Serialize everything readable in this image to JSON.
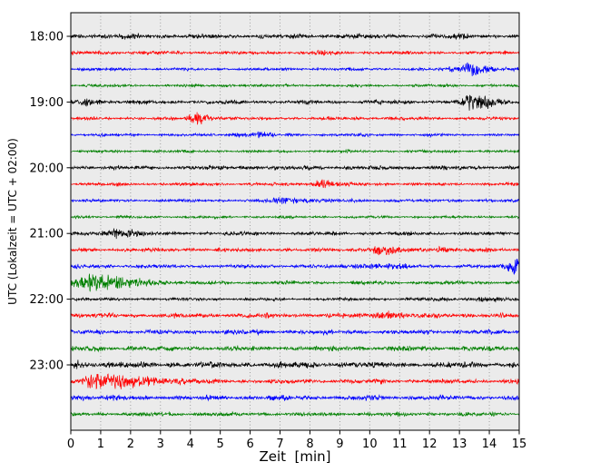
{
  "figure": {
    "bg": "#ffffff",
    "plot_bg": "#ebebeb",
    "grid_color": "#8a8a8a"
  },
  "chart_data": {
    "type": "line",
    "subtype": "seismogram-helicorder",
    "title": "",
    "xlabel": "Zeit  [min]",
    "ylabel": "UTC (Lokalzeit = UTC + 02:00)",
    "xlim": [
      0,
      15
    ],
    "grid": "vertical-dotted",
    "x_ticks": [
      "0",
      "1",
      "2",
      "3",
      "4",
      "5",
      "6",
      "7",
      "8",
      "9",
      "10",
      "11",
      "12",
      "13",
      "14",
      "15"
    ],
    "hour_labels": [
      "18:00",
      "19:00",
      "20:00",
      "21:00",
      "22:00",
      "23:00"
    ],
    "hour_rows": [
      0,
      4,
      8,
      12,
      16,
      20
    ],
    "traces_per_hour": 4,
    "minutes_per_trace": 15,
    "color_cycle": [
      "#000000",
      "#ff0000",
      "#0000ff",
      "#008000"
    ],
    "traces": [
      {
        "start": "18:00",
        "color": "#000000",
        "base": 2.7,
        "bursts": [
          {
            "t": 0.4,
            "w": 0.3,
            "a": 1.2
          },
          {
            "t": 2.5,
            "w": 0.6,
            "a": 1.0
          },
          {
            "t": 9.2,
            "w": 0.5,
            "a": 0.8
          },
          {
            "t": 13.1,
            "w": 0.4,
            "a": 0.9
          }
        ]
      },
      {
        "start": "18:15",
        "color": "#ff0000",
        "base": 2.1,
        "bursts": [
          {
            "t": 1.1,
            "w": 0.3,
            "a": 0.8
          },
          {
            "t": 8.4,
            "w": 0.25,
            "a": 1.5
          }
        ]
      },
      {
        "start": "18:30",
        "color": "#0000ff",
        "base": 1.8,
        "bursts": [
          {
            "t": 12.7,
            "w": 0.2,
            "a": 1.5
          },
          {
            "t": 13.25,
            "wl": 0.25,
            "wr": 0.8,
            "a": 7.0
          }
        ]
      },
      {
        "start": "18:45",
        "color": "#008000",
        "base": 1.7,
        "bursts": [
          {
            "t": 5.2,
            "w": 0.6,
            "a": 0.5
          }
        ]
      },
      {
        "start": "19:00",
        "color": "#000000",
        "base": 2.5,
        "bursts": [
          {
            "t": 0.6,
            "w": 0.3,
            "a": 2.8
          },
          {
            "t": 13.4,
            "wl": 0.3,
            "wr": 0.9,
            "a": 7.5
          }
        ]
      },
      {
        "start": "19:15",
        "color": "#ff0000",
        "base": 2.0,
        "bursts": [
          {
            "t": 4.2,
            "wl": 0.25,
            "wr": 0.5,
            "a": 6.0
          }
        ]
      },
      {
        "start": "19:30",
        "color": "#0000ff",
        "base": 1.8,
        "bursts": [
          {
            "t": 5.6,
            "w": 0.3,
            "a": 1.4
          },
          {
            "t": 6.3,
            "w": 0.45,
            "a": 2.2
          }
        ]
      },
      {
        "start": "19:45",
        "color": "#008000",
        "base": 1.6,
        "bursts": [
          {
            "t": 3.0,
            "w": 0.5,
            "a": 0.6
          }
        ]
      },
      {
        "start": "20:00",
        "color": "#000000",
        "base": 2.5,
        "bursts": [
          {
            "t": 7.5,
            "w": 2.5,
            "a": 0.4
          }
        ]
      },
      {
        "start": "20:15",
        "color": "#ff0000",
        "base": 2.0,
        "bursts": [
          {
            "t": 8.4,
            "wl": 0.3,
            "wr": 0.55,
            "a": 4.2
          }
        ]
      },
      {
        "start": "20:30",
        "color": "#0000ff",
        "base": 1.9,
        "bursts": [
          {
            "t": 7.0,
            "wl": 0.4,
            "wr": 1.3,
            "a": 2.6
          },
          {
            "t": 10.8,
            "w": 0.3,
            "a": 1.0
          }
        ]
      },
      {
        "start": "20:45",
        "color": "#008000",
        "base": 1.6,
        "bursts": [
          {
            "t": 0.3,
            "w": 0.3,
            "a": 0.9
          }
        ]
      },
      {
        "start": "21:00",
        "color": "#000000",
        "base": 2.4,
        "bursts": [
          {
            "t": 1.5,
            "wl": 0.35,
            "wr": 0.65,
            "a": 5.0
          }
        ]
      },
      {
        "start": "21:15",
        "color": "#ff0000",
        "base": 2.4,
        "bursts": [
          {
            "t": 10.3,
            "wl": 0.3,
            "wr": 0.6,
            "a": 5.0
          },
          {
            "t": 12.4,
            "w": 0.4,
            "a": 2.8
          }
        ]
      },
      {
        "start": "21:30",
        "color": "#0000ff",
        "base": 2.4,
        "bursts": [
          {
            "t": 10.2,
            "w": 0.9,
            "a": 1.8
          },
          {
            "t": 14.9,
            "wl": 0.35,
            "wr": 0.6,
            "a": 8.0
          }
        ]
      },
      {
        "start": "21:45",
        "color": "#008000",
        "base": 2.2,
        "bursts": [
          {
            "t": 0.45,
            "wl": 0.35,
            "wr": 1.9,
            "a": 9.0
          }
        ]
      },
      {
        "start": "22:00",
        "color": "#000000",
        "base": 2.0,
        "bursts": [
          {
            "t": 12.1,
            "w": 0.3,
            "a": 1.0
          },
          {
            "t": 13.9,
            "w": 0.55,
            "a": 2.4
          }
        ]
      },
      {
        "start": "22:15",
        "color": "#ff0000",
        "base": 2.8,
        "bursts": [
          {
            "t": 10.5,
            "wl": 0.35,
            "wr": 0.55,
            "a": 4.2
          }
        ]
      },
      {
        "start": "22:30",
        "color": "#0000ff",
        "base": 2.9,
        "bursts": []
      },
      {
        "start": "22:45",
        "color": "#008000",
        "base": 3.2,
        "bursts": []
      },
      {
        "start": "23:00",
        "color": "#000000",
        "base": 3.7,
        "bursts": [
          {
            "t": 0.25,
            "w": 0.35,
            "a": 2.0
          }
        ]
      },
      {
        "start": "23:15",
        "color": "#ff0000",
        "base": 2.8,
        "bursts": [
          {
            "t": 0.85,
            "wl": 0.45,
            "wr": 2.0,
            "a": 8.0
          }
        ]
      },
      {
        "start": "23:30",
        "color": "#0000ff",
        "base": 3.0,
        "bursts": [
          {
            "t": 0.35,
            "w": 0.4,
            "a": 1.3
          }
        ]
      },
      {
        "start": "23:45",
        "color": "#008000",
        "base": 2.4,
        "bursts": []
      }
    ]
  }
}
